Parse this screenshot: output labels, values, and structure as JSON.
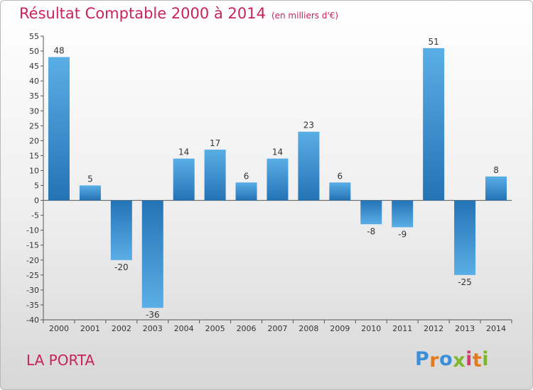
{
  "title": "Résultat Comptable 2000 à 2014",
  "unit": "(en milliers d'€)",
  "commune": "LA PORTA",
  "logo": {
    "letters": [
      "P",
      "r",
      "o",
      "x",
      "i",
      "t",
      "i"
    ],
    "colors": [
      "#3a8fd9",
      "#e07b1f",
      "#3a8fd9",
      "#7db72f",
      "#d93a6a",
      "#e07b1f",
      "#7db72f"
    ]
  },
  "chart_data": {
    "type": "bar",
    "categories": [
      "2000",
      "2001",
      "2002",
      "2003",
      "2004",
      "2005",
      "2006",
      "2007",
      "2008",
      "2009",
      "2010",
      "2011",
      "2012",
      "2013",
      "2014"
    ],
    "values": [
      48,
      5,
      -20,
      -36,
      14,
      17,
      6,
      14,
      23,
      6,
      -8,
      -9,
      51,
      -25,
      8
    ],
    "data_labels": [
      "48",
      "5",
      "-20",
      "-36",
      "14",
      "17",
      "6",
      "14",
      "23",
      "6",
      "-8",
      "-9",
      "51",
      "-25",
      "8"
    ],
    "ylim": [
      -40,
      55
    ],
    "yticks": [
      55,
      50,
      45,
      40,
      35,
      30,
      25,
      20,
      15,
      10,
      5,
      0,
      -5,
      -10,
      -15,
      -20,
      -25,
      -30,
      -35,
      -40
    ],
    "ytick_labels": [
      "55",
      "50",
      "45",
      "40",
      "35",
      "30",
      "25",
      "20",
      "15",
      "10",
      "5",
      "0",
      "-5",
      "-10",
      "-15",
      "-20",
      "-25",
      "-30",
      "-35",
      "-40"
    ],
    "grid": false,
    "bar_color_light": "#5aaee6",
    "bar_color_dark": "#2473b5"
  }
}
